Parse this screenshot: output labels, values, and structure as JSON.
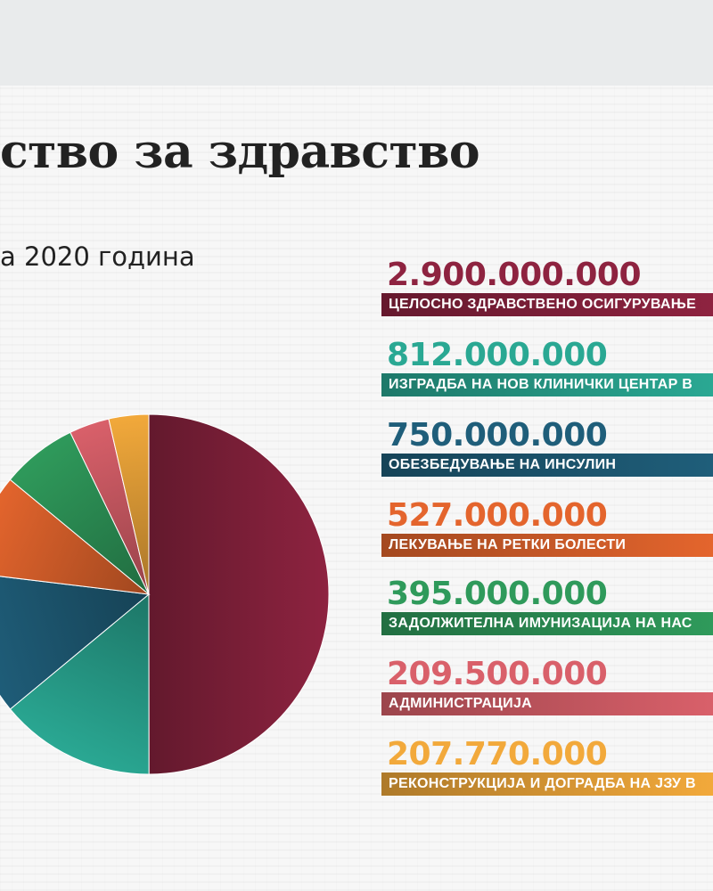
{
  "header": {
    "title": "ство за здравство",
    "subtitle": "а 2020 година"
  },
  "chart_data": {
    "type": "pie",
    "categories": [
      "ЦЕЛОСНО ЗДРАВСТВЕНО ОСИГУРУВАЊЕ",
      "ИЗГРАДБА НА НОВ КЛИНИЧКИ ЦЕНТАР В",
      "ОБЕЗБЕДУВАЊЕ НА ИНСУЛИН",
      "ЛЕКУВАЊЕ НА РЕТКИ БОЛЕСТИ",
      "ЗАДОЛЖИТЕЛНА ИМУНИЗАЦИЈА НА НАС",
      "АДМИНИСТРАЦИЈА",
      "РЕКОНСТРУКЦИЈА И ДОГРАДБА НА ЈЗУ В"
    ],
    "values": [
      2900000000,
      812000000,
      750000000,
      527000000,
      395000000,
      209500000,
      207770000
    ],
    "value_labels": [
      "2.900.000.000",
      "812.000.000",
      "750.000.000",
      "527.000.000",
      "395.000.000",
      "209.500.000",
      "207.770.000"
    ],
    "colors": [
      "#8e2340",
      "#2aa893",
      "#1f5e7a",
      "#e4652d",
      "#2f9a5b",
      "#d9606a",
      "#f2a93b"
    ],
    "legend_position": "right"
  }
}
